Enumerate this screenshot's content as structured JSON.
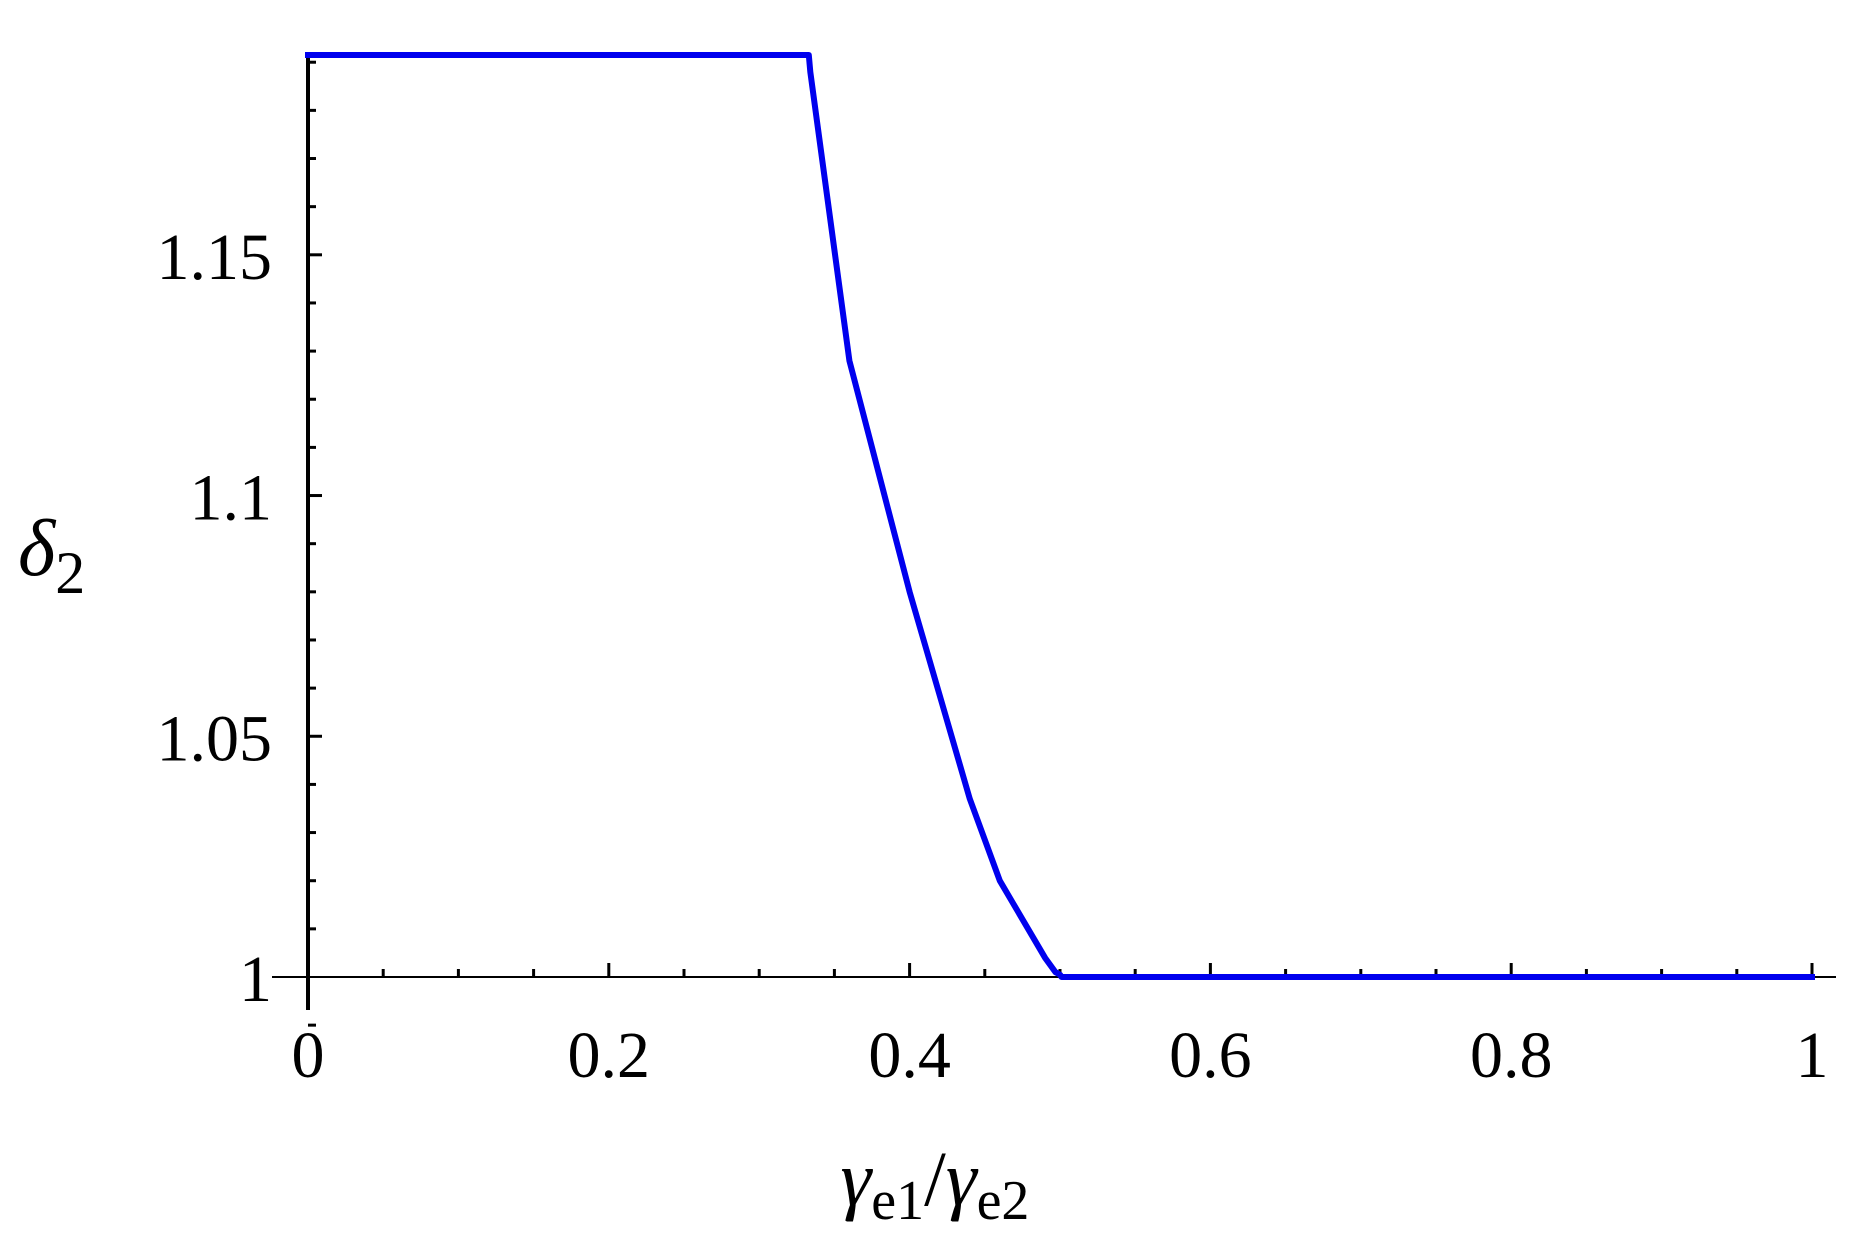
{
  "chart_data": {
    "type": "line",
    "title": "",
    "xlabel": {
      "symbol1": "γ",
      "sub1": "e1",
      "slash": "/",
      "symbol2": "γ",
      "sub2": "e2"
    },
    "ylabel": {
      "symbol": "δ",
      "sub": "2"
    },
    "xlim": [
      0,
      1
    ],
    "ylim": [
      0.99,
      1.192
    ],
    "x_ticks": [
      {
        "value": 0,
        "label": "0"
      },
      {
        "value": 0.2,
        "label": "0.2"
      },
      {
        "value": 0.4,
        "label": "0.4"
      },
      {
        "value": 0.6,
        "label": "0.6"
      },
      {
        "value": 0.8,
        "label": "0.8"
      },
      {
        "value": 1,
        "label": "1"
      }
    ],
    "y_ticks": [
      {
        "value": 1,
        "label": "1"
      },
      {
        "value": 1.05,
        "label": "1.05"
      },
      {
        "value": 1.1,
        "label": "1.1"
      },
      {
        "value": 1.15,
        "label": "1.15"
      }
    ],
    "x_minor_step": 0.05,
    "y_minor_step": 0.01,
    "grid": false,
    "series": [
      {
        "color": "#0000ee",
        "x": [
          0,
          0.333,
          0.334,
          0.36,
          0.4,
          0.44,
          0.46,
          0.49,
          0.497,
          0.5,
          0.501,
          0.55,
          0.6,
          0.7,
          0.8,
          0.9,
          1.0
        ],
        "y": [
          1.1915,
          1.1915,
          1.188,
          1.128,
          1.08,
          1.037,
          1.02,
          1.004,
          1.001,
          1.0005,
          1.0,
          1.0,
          1.0,
          1.0,
          1.0,
          1.0,
          1.0
        ]
      }
    ]
  }
}
